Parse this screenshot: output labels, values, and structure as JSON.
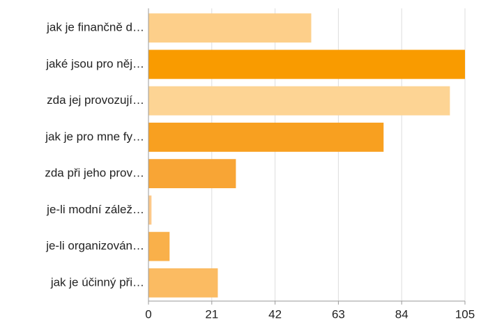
{
  "chart_data": {
    "type": "barh",
    "categories": [
      "jak je finančně d…",
      "jaké jsou pro něj…",
      "zda jej provozují…",
      "jak je pro mne fy…",
      "zda při jeho prov…",
      "je-li modní zálež…",
      "je-li organizován…",
      "jak je účinný při…"
    ],
    "values": [
      54,
      105,
      100,
      78,
      29,
      1,
      7,
      23
    ],
    "colors": [
      "#fdcf8a",
      "#f99b00",
      "#fdd494",
      "#f8a020",
      "#f8a535",
      "#fdc98a",
      "#f9b04a",
      "#fbbb62"
    ],
    "xlim": [
      0,
      105
    ],
    "xticks": [
      0,
      21,
      42,
      63,
      84,
      105
    ],
    "grid": true
  }
}
